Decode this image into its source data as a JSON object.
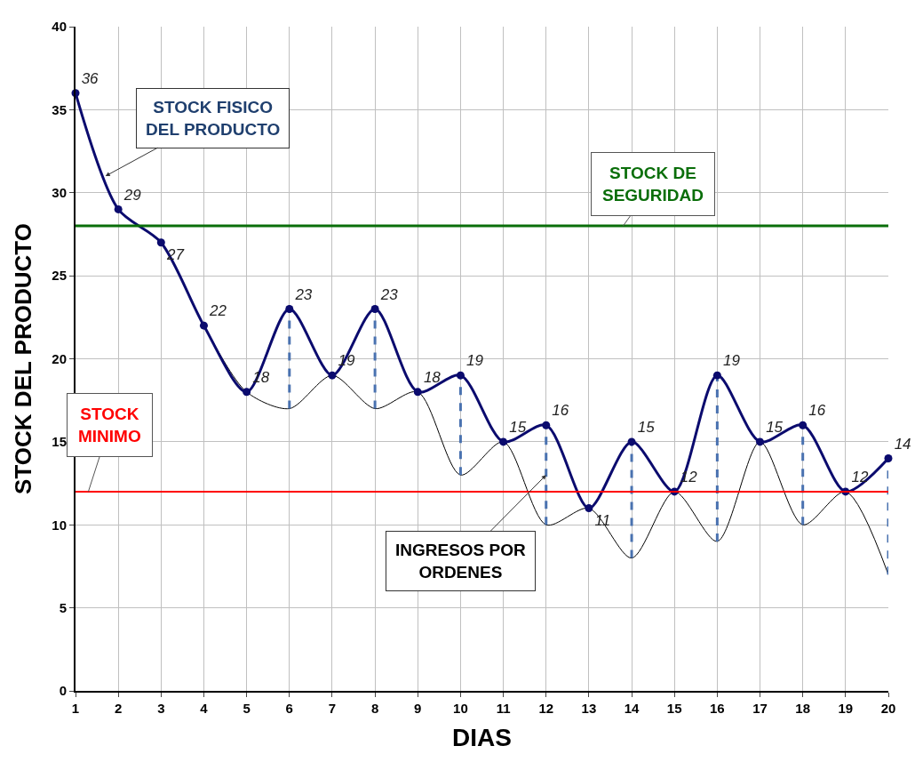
{
  "chart_data": {
    "type": "line",
    "xlabel": "DIAS",
    "ylabel": "STOCK DEL PRODUCTO",
    "x": [
      1,
      2,
      3,
      4,
      5,
      6,
      7,
      8,
      9,
      10,
      11,
      12,
      13,
      14,
      15,
      16,
      17,
      18,
      19,
      20
    ],
    "xlim": [
      1,
      20
    ],
    "xticks": [
      1,
      2,
      3,
      4,
      5,
      6,
      7,
      8,
      9,
      10,
      11,
      12,
      13,
      14,
      15,
      16,
      17,
      18,
      19,
      20
    ],
    "ylim": [
      0,
      40
    ],
    "yticks": [
      0,
      5,
      10,
      15,
      20,
      25,
      30,
      35,
      40
    ],
    "grid": true,
    "series": [
      {
        "color": "#000000",
        "values": [
          36,
          29,
          27,
          22,
          18,
          17,
          19,
          17,
          18,
          13,
          15,
          10,
          11,
          8,
          12,
          9,
          15,
          10,
          12,
          7
        ],
        "marker": "none"
      },
      {
        "color": "#4a72b0",
        "line_style": "dashed",
        "marker": "none",
        "x": [
          6,
          6
        ],
        "values": [
          17,
          23
        ]
      },
      {
        "color": "#4a72b0",
        "line_style": "dashed",
        "marker": "none",
        "x": [
          8,
          8
        ],
        "values": [
          17,
          23
        ]
      },
      {
        "color": "#4a72b0",
        "line_style": "dashed",
        "marker": "none",
        "x": [
          10,
          10
        ],
        "values": [
          13,
          19
        ]
      },
      {
        "color": "#4a72b0",
        "line_style": "dashed",
        "marker": "none",
        "x": [
          12,
          12
        ],
        "values": [
          10,
          16
        ]
      },
      {
        "color": "#4a72b0",
        "line_style": "dashed",
        "marker": "none",
        "x": [
          14,
          14
        ],
        "values": [
          8,
          15
        ]
      },
      {
        "color": "#4a72b0",
        "line_style": "dashed",
        "marker": "none",
        "x": [
          16,
          16
        ],
        "values": [
          9,
          19
        ]
      },
      {
        "color": "#4a72b0",
        "line_style": "dashed",
        "marker": "none",
        "x": [
          18,
          18
        ],
        "values": [
          10,
          16
        ]
      },
      {
        "color": "#4a72b0",
        "line_style": "dashed",
        "marker": "none",
        "x": [
          20,
          20
        ],
        "values": [
          7,
          14
        ]
      },
      {
        "color": "#0b0b6e",
        "values": [
          36,
          29,
          27,
          22,
          18,
          23,
          19,
          23,
          18,
          19,
          15,
          16,
          11,
          15,
          12,
          19,
          15,
          16,
          12,
          14
        ],
        "marker": "circle",
        "data_labels": true
      }
    ],
    "ref_lines": [
      {
        "axis": "y",
        "value": 28,
        "label": "STOCK DE\nSEGURIDAD",
        "color": "#0a6e0a"
      },
      {
        "axis": "y",
        "value": 12,
        "label": "STOCK\nMINIMO",
        "color": "#ff0000"
      }
    ],
    "annotations": [
      {
        "text": "STOCK FISICO\nDEL PRODUCTO",
        "x": 1.7,
        "y": 31
      },
      {
        "text": "INGRESOS POR\nORDENES",
        "x": 12,
        "y": 13
      }
    ]
  }
}
